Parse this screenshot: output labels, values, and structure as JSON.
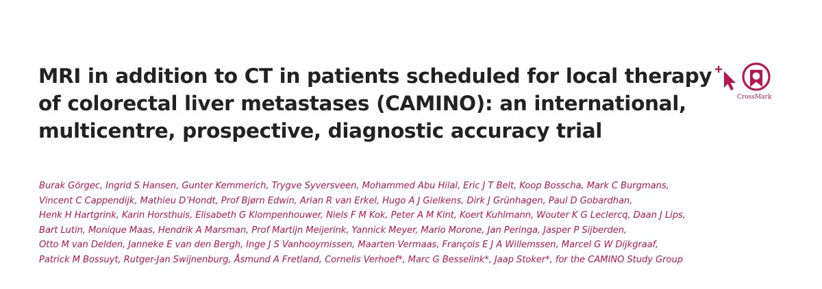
{
  "article": {
    "title_lines": [
      "MRI in addition to CT in patients scheduled for local therapy",
      "of colorectal liver metastases (CAMINO): an international,",
      "multicentre, prospective, diagnostic accuracy trial"
    ],
    "author_lines": [
      "Burak Görgec, Ingrid S Hansen, Gunter Kemmerich, Trygve Syversveen, Mohammed Abu Hilal, Eric J T Belt, Koop Bosscha, Mark C Burgmans,",
      "Vincent C Cappendijk, Mathieu D’Hondt, Prof Bjørn Edwin, Arian R van Erkel, Hugo A J Gielkens, Dirk J Grünhagen, Paul D Gobardhan,",
      "Henk H Hartgrink, Karin Horsthuis, Elisabeth G Klompenhouwer, Niels F M Kok, Peter A M Kint, Koert Kuhlmann, Wouter K G Leclercq, Daan J Lips,",
      "Bart Lutin, Monique Maas, Hendrik A Marsman, Prof Martijn Meijerink, Yannick Meyer, Mario Morone, Jan Peringa, Jasper P Sijberden,",
      "Otto M van Delden, Janneke E van den Bergh, Inge J S Vanhooymissen, Maarten Vermaas, François E J A Willemssen, Marcel G W Dijkgraaf,",
      "Patrick M Bossuyt, Rutger-Jan Swijnenburg, Åsmund A Fretland, Cornelis Verhoef*, Marc G Besselink*, Jaap Stoker*, for the CAMINO Study Group"
    ]
  },
  "crossmark": {
    "label": "CrossMark",
    "icon": "crossmark-icon"
  },
  "colors": {
    "title": "#222222",
    "authors": "#b5194f",
    "crossmark": "#b5194f"
  }
}
